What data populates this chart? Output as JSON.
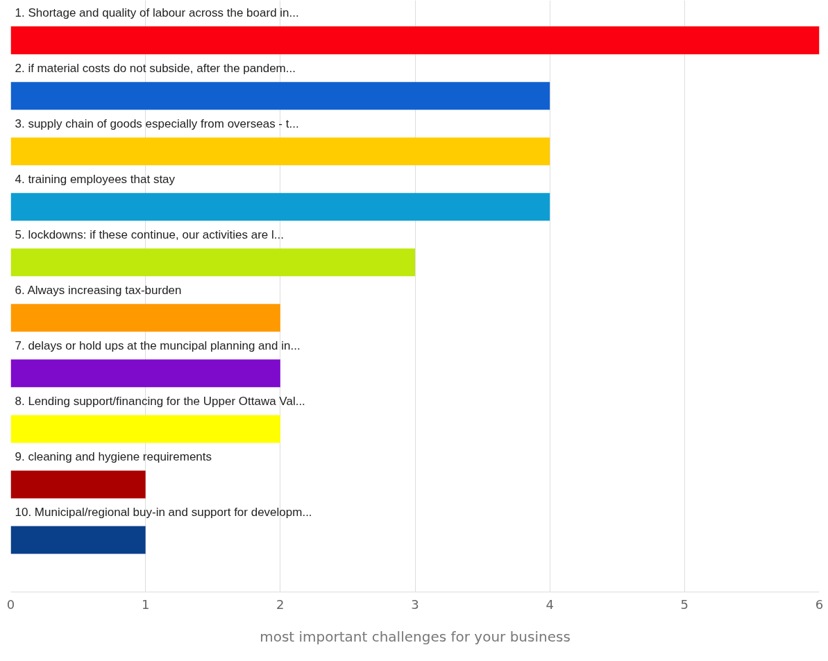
{
  "chart_data": {
    "type": "bar",
    "orientation": "horizontal",
    "xlabel": "most important challenges for your business",
    "categories": [
      "1. Shortage and quality of labour across the board in...",
      "2. if material costs do not subside, after the pandem...",
      "3. supply chain of goods especially from overseas - t...",
      "4. training employees that stay",
      "5. lockdowns: if these continue, our activities are l...",
      "6. Always increasing tax-burden",
      "7. delays or hold ups at the muncipal planning and in...",
      "8. Lending support/financing for the Upper Ottawa Val...",
      "9. cleaning and hygiene requirements",
      "10. Municipal/regional buy-in and support for developm..."
    ],
    "values": [
      6,
      4,
      4,
      4,
      3,
      2,
      2,
      2,
      1,
      1
    ],
    "colors": [
      "#fa0010",
      "#1160d0",
      "#ffcc00",
      "#0e9dd3",
      "#bfe80c",
      "#ff9900",
      "#7e0acc",
      "#ffff00",
      "#aa0000",
      "#0a3f8a"
    ],
    "xlim": [
      0,
      6
    ],
    "xticks": [
      0,
      1,
      2,
      3,
      4,
      5,
      6
    ],
    "grid": "x"
  }
}
